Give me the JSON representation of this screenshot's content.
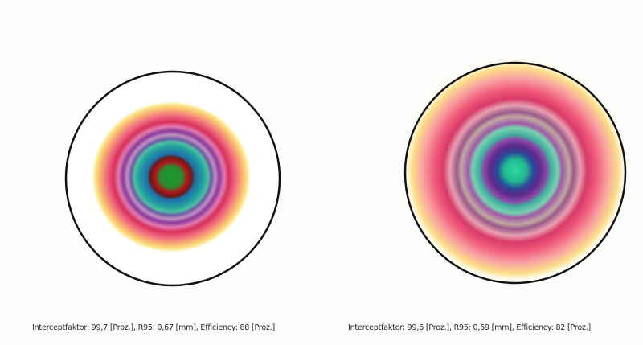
{
  "panels": [
    {
      "caption": "Interceptfaktor: 99,7 [Proz.], R95: 0,67 [mm], Efficiency: 88 [Proz.]"
    },
    {
      "caption": "Interceptfaktor: 99,6 [Proz.], R95: 0,69 [mm], Efficiency: 82 [Proz.]"
    }
  ]
}
